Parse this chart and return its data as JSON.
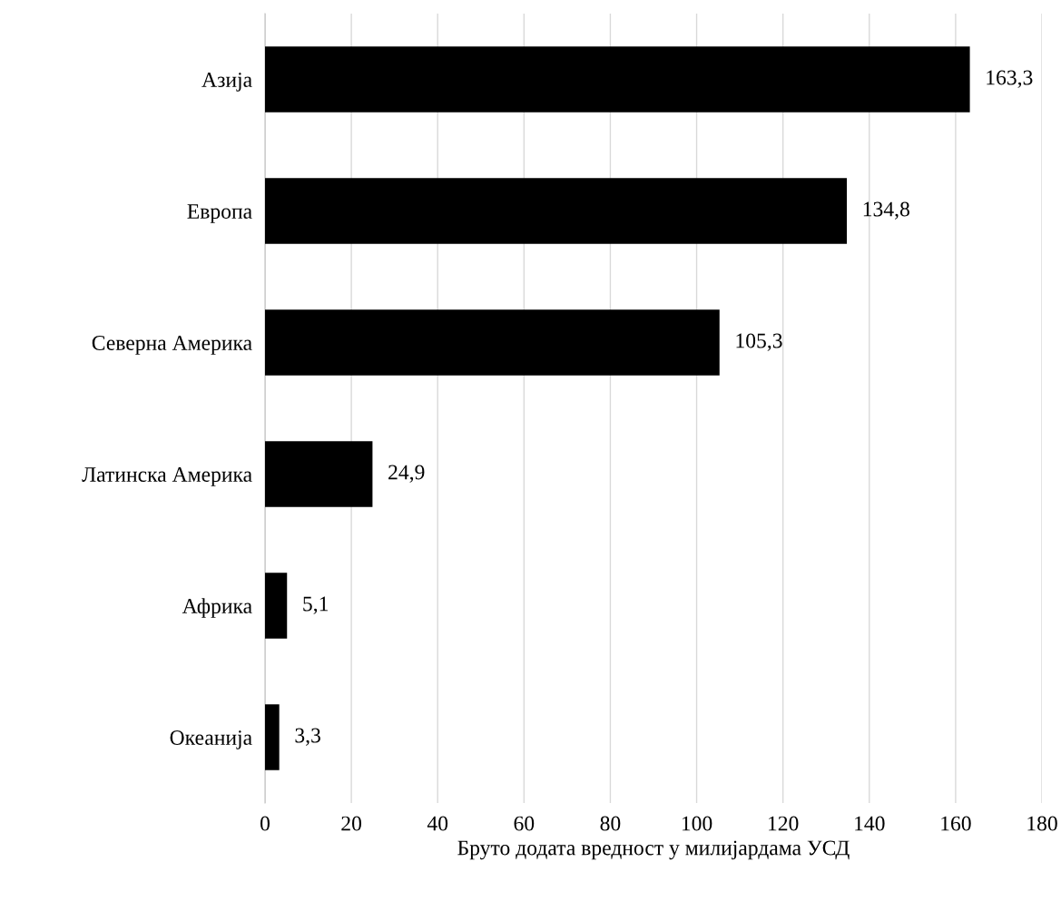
{
  "chart_data": {
    "type": "bar",
    "orientation": "horizontal",
    "xlabel": "Бруто додата вредност у милијардама УСД",
    "categories": [
      "Азија",
      "Европа",
      "Северна Америка",
      "Латинска Америка",
      "Африка",
      "Океанија"
    ],
    "values": [
      163.3,
      134.8,
      105.3,
      24.9,
      5.1,
      3.3
    ],
    "value_labels": [
      "163,3",
      "134,8",
      "105,3",
      "24,9",
      "5,1",
      "3,3"
    ],
    "color": "#000000",
    "xlim": [
      0,
      180
    ],
    "xticks": [
      0,
      20,
      40,
      60,
      80,
      100,
      120,
      140,
      160,
      180
    ],
    "grid": "x",
    "legend": false
  }
}
